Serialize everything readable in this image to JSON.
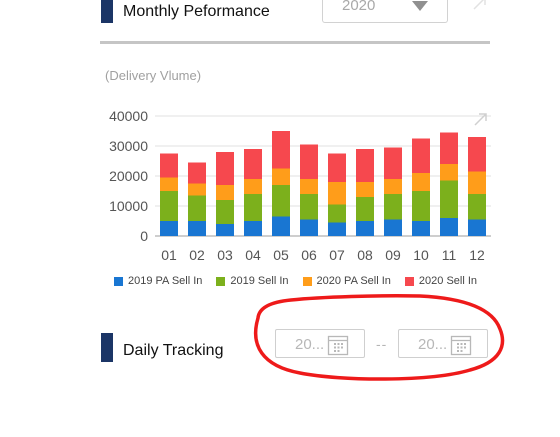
{
  "monthly": {
    "title": "Monthly Peformance",
    "year_value": "2020",
    "subtitle": "(Delivery Vlume)"
  },
  "chart_data": {
    "type": "bar",
    "stacked": true,
    "categories": [
      "01",
      "02",
      "03",
      "04",
      "05",
      "06",
      "07",
      "08",
      "09",
      "10",
      "11",
      "12"
    ],
    "series": [
      {
        "name": "2019 PA Sell In",
        "color": "#1976d2",
        "values": [
          5000,
          5000,
          4000,
          5000,
          6500,
          5500,
          4500,
          5000,
          5500,
          5000,
          6000,
          5500
        ]
      },
      {
        "name": "2019 Sell In",
        "color": "#7cb01c",
        "values": [
          10000,
          8500,
          8000,
          9000,
          10500,
          8500,
          6000,
          8000,
          8500,
          10000,
          12500,
          8500
        ]
      },
      {
        "name": "2020 PA Sell In",
        "color": "#ff9d1a",
        "values": [
          4500,
          4000,
          5000,
          5000,
          5500,
          5000,
          7500,
          5000,
          5000,
          6000,
          5500,
          7500
        ]
      },
      {
        "name": "2020 Sell In",
        "color": "#f6484e",
        "values": [
          8000,
          7000,
          11000,
          10000,
          12500,
          11500,
          9500,
          11000,
          10500,
          11500,
          10500,
          11500
        ]
      }
    ],
    "ylim": [
      0,
      40000
    ],
    "yticks": [
      "40000",
      "30000",
      "20000",
      "10000",
      "0"
    ],
    "grid": true,
    "legend_position": "bottom"
  },
  "daily": {
    "title": "Daily Tracking",
    "start_date": "20...",
    "separator": "--",
    "end_date": "20..."
  },
  "colors": {
    "section_marker": "#1b3566",
    "annotation": "#ee1a1a"
  }
}
